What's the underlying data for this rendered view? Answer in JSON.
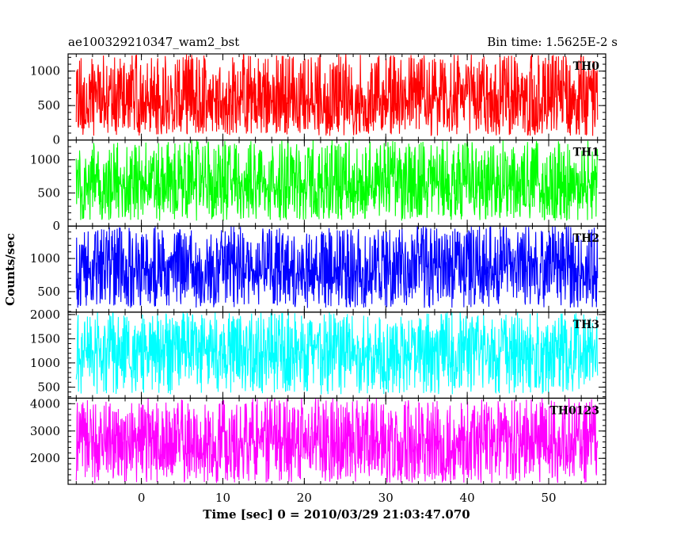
{
  "header": {
    "title_left": "ae100329210347_wam2_bst",
    "title_right": "Bin time: 1.5625E-2 s"
  },
  "chart_data": {
    "type": "line",
    "title": "ae100329210347_wam2_bst",
    "subtitle": "Bin time: 1.5625E-2 s",
    "xlabel": "Time [sec] 0 = 2010/03/29 21:03:47.070",
    "ylabel": "Counts/sec",
    "xlim": [
      -9,
      57
    ],
    "x_ticks": [
      0,
      10,
      20,
      30,
      40,
      50
    ],
    "x_tick_labels": [
      "0",
      "10",
      "20",
      "30",
      "40",
      "50"
    ],
    "data_x_range": [
      -8,
      56
    ],
    "bin_time": 0.015625,
    "grid": false,
    "legend": "none",
    "panels": [
      {
        "name": "TH0",
        "color": "#ff0000",
        "ylim": [
          0,
          1250
        ],
        "y_ticks": [
          0,
          500,
          1000
        ],
        "y_tick_labels": [
          "0",
          "500",
          "1000"
        ],
        "mean": 580,
        "min": 60,
        "max": 1250
      },
      {
        "name": "TH1",
        "color": "#00ff00",
        "ylim": [
          0,
          1300
        ],
        "y_ticks": [
          0,
          500,
          1000
        ],
        "y_tick_labels": [
          "0",
          "500",
          "1000"
        ],
        "mean": 610,
        "min": 80,
        "max": 1300
      },
      {
        "name": "TH2",
        "color": "#0000ff",
        "ylim": [
          190,
          1490
        ],
        "y_ticks": [
          500,
          1000
        ],
        "y_tick_labels": [
          "500",
          "1000"
        ],
        "mean": 860,
        "min": 250,
        "max": 1490
      },
      {
        "name": "TH3",
        "color": "#00ffff",
        "ylim": [
          270,
          2050
        ],
        "y_ticks": [
          500,
          1000,
          1500,
          2000
        ],
        "y_tick_labels": [
          "500",
          "1000",
          "1500",
          "2000"
        ],
        "mean": 1230,
        "min": 350,
        "max": 2050
      },
      {
        "name": "TH0123",
        "color": "#ff00ff",
        "ylim": [
          1050,
          4200
        ],
        "y_ticks": [
          2000,
          3000,
          4000
        ],
        "y_tick_labels": [
          "2000",
          "3000",
          "4000"
        ],
        "mean": 2600,
        "min": 1100,
        "max": 4200
      }
    ]
  }
}
